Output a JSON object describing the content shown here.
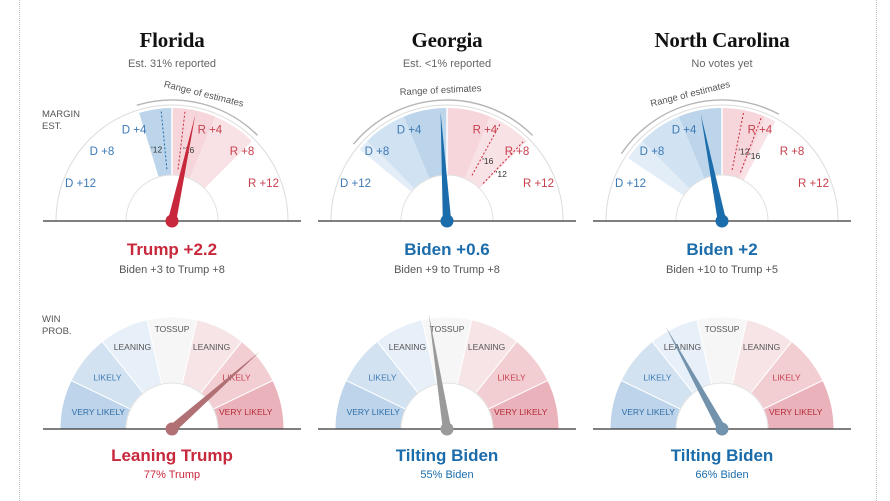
{
  "labels": {
    "margin_line1": "MARGIN",
    "margin_line2": "EST.",
    "prob_line1": "WIN",
    "prob_line2": "PROB."
  },
  "colors": {
    "trump": "#c8283c",
    "biden": "#1b6cab",
    "neutral_needle": "#9a9a9a",
    "biden_needle_light": "#7393ad",
    "trump_needle_light": "#b07074"
  },
  "margin_scale": {
    "labels": [
      "D +12",
      "D +8",
      "D +4",
      "R +4",
      "R +8",
      "R +12"
    ],
    "values": [
      -12,
      -8,
      -4,
      4,
      8,
      12
    ],
    "range": [
      -16,
      16
    ]
  },
  "prob_scale": {
    "bands": [
      "VERY LIKELY",
      "LIKELY",
      "LEANING",
      "TOSSUP",
      "LEANING",
      "LIKELY",
      "VERY LIKELY"
    ]
  },
  "chart_data": [
    {
      "type": "gauge",
      "state": "Florida",
      "reported": "Est. 31% reported",
      "range_label": "Range of estimates",
      "margin": {
        "value": 2.2,
        "range": [
          -3,
          8
        ],
        "past": [
          {
            "label": "'12",
            "value": -1.0
          },
          {
            "label": "'16",
            "value": 1.2
          }
        ],
        "headline": "Trump +2.2",
        "range_text": "Biden +3 to Trump +8",
        "leader": "trump"
      },
      "probability": {
        "trump_win": 0.77,
        "headline": "Leaning Trump",
        "detail": "77% Trump",
        "leader": "trump"
      }
    },
    {
      "type": "gauge",
      "state": "Georgia",
      "reported": "Est. <1% reported",
      "range_label": "Range of estimates",
      "margin": {
        "value": -0.6,
        "range": [
          -9,
          8
        ],
        "past": [
          {
            "label": "'16",
            "value": 5.1
          },
          {
            "label": "'12",
            "value": 7.8
          }
        ],
        "headline": "Biden +0.6",
        "range_text": "Biden +9 to Trump +8",
        "leader": "biden"
      },
      "probability": {
        "trump_win": 0.45,
        "headline": "Tilting Biden",
        "detail": "55% Biden",
        "leader": "biden"
      }
    },
    {
      "type": "gauge",
      "state": "North Carolina",
      "reported": "No votes yet",
      "range_label": "Range of estimates",
      "margin": {
        "value": -2,
        "range": [
          -10,
          5
        ],
        "past": [
          {
            "label": "'12",
            "value": 2.0
          },
          {
            "label": "'16",
            "value": 3.7
          }
        ],
        "headline": "Biden +2",
        "range_text": "Biden +10 to Trump +5",
        "leader": "biden"
      },
      "probability": {
        "trump_win": 0.34,
        "headline": "Tilting Biden",
        "detail": "66% Biden",
        "leader": "biden"
      }
    }
  ]
}
